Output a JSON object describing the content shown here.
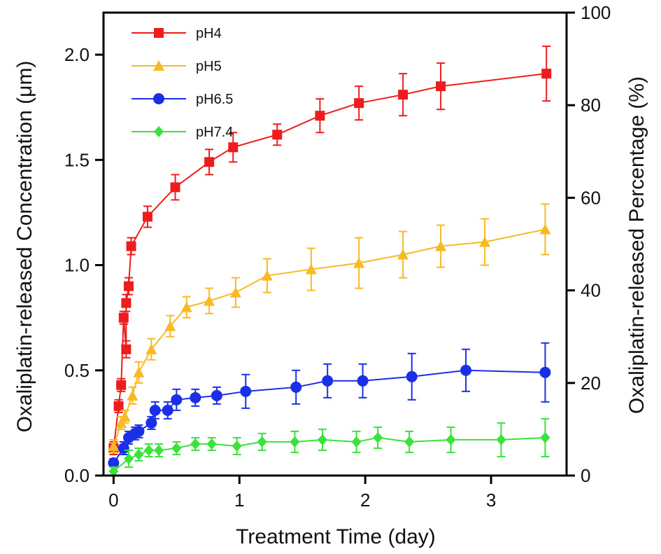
{
  "chart_data": {
    "type": "line",
    "xlabel": "Treatment Time (day)",
    "ylabel": "Oxaliplatin-released Concentration (μm)",
    "y2label": "Oxaliplatin-released Percentage (%)",
    "xlim": [
      -0.08,
      3.6
    ],
    "ylim": [
      0,
      2.2
    ],
    "y2lim": [
      0,
      100
    ],
    "xticks": [
      0,
      1,
      2,
      3
    ],
    "yticks": [
      0.0,
      0.5,
      1.0,
      1.5,
      2.0
    ],
    "y2ticks": [
      0,
      20,
      40,
      60,
      80,
      100
    ],
    "xtick_labels": [
      "0",
      "1",
      "2",
      "3"
    ],
    "ytick_labels": [
      "0.0",
      "0.5",
      "1.0",
      "1.5",
      "2.0"
    ],
    "y2tick_labels": [
      "0",
      "20",
      "40",
      "60",
      "80",
      "100"
    ],
    "legend_position": "top-left",
    "series": [
      {
        "name": "pH4",
        "color": "#ee1c1c",
        "marker": "square",
        "x": [
          0.0,
          0.04,
          0.06,
          0.08,
          0.1,
          0.1,
          0.12,
          0.14,
          0.27,
          0.49,
          0.76,
          0.95,
          1.3,
          1.64,
          1.95,
          2.3,
          2.6,
          3.44
        ],
        "y": [
          0.13,
          0.33,
          0.43,
          0.75,
          0.6,
          0.82,
          0.9,
          1.09,
          1.23,
          1.37,
          1.49,
          1.56,
          1.62,
          1.71,
          1.77,
          1.81,
          1.85,
          1.91
        ],
        "err": [
          0.03,
          0.03,
          0.03,
          0.03,
          0.04,
          0.04,
          0.04,
          0.04,
          0.05,
          0.06,
          0.06,
          0.07,
          0.05,
          0.08,
          0.08,
          0.1,
          0.11,
          0.13
        ]
      },
      {
        "name": "pH5",
        "color": "#f7b924",
        "marker": "triangle",
        "x": [
          0.0,
          0.06,
          0.09,
          0.15,
          0.2,
          0.3,
          0.45,
          0.58,
          0.76,
          0.97,
          1.22,
          1.57,
          1.95,
          2.3,
          2.6,
          2.95,
          3.43
        ],
        "y": [
          0.14,
          0.25,
          0.28,
          0.38,
          0.49,
          0.6,
          0.71,
          0.8,
          0.83,
          0.87,
          0.95,
          0.98,
          1.01,
          1.05,
          1.09,
          1.11,
          1.17
        ],
        "err": [
          0.03,
          0.03,
          0.03,
          0.04,
          0.05,
          0.05,
          0.05,
          0.05,
          0.06,
          0.07,
          0.08,
          0.1,
          0.12,
          0.11,
          0.1,
          0.11,
          0.12
        ]
      },
      {
        "name": "pH6.5",
        "color": "#1a2fe6",
        "marker": "circle",
        "x": [
          0.0,
          0.08,
          0.12,
          0.17,
          0.2,
          0.3,
          0.33,
          0.43,
          0.5,
          0.65,
          0.82,
          1.05,
          1.45,
          1.7,
          1.98,
          2.37,
          2.8,
          3.43
        ],
        "y": [
          0.06,
          0.13,
          0.18,
          0.2,
          0.21,
          0.25,
          0.31,
          0.31,
          0.36,
          0.37,
          0.38,
          0.4,
          0.42,
          0.45,
          0.45,
          0.47,
          0.5,
          0.49
        ],
        "err": [
          0.02,
          0.03,
          0.03,
          0.03,
          0.03,
          0.03,
          0.04,
          0.04,
          0.05,
          0.04,
          0.04,
          0.08,
          0.08,
          0.08,
          0.08,
          0.11,
          0.1,
          0.14
        ]
      },
      {
        "name": "pH7.4",
        "color": "#3ce23c",
        "marker": "diamond",
        "x": [
          0.0,
          0.12,
          0.2,
          0.28,
          0.36,
          0.5,
          0.65,
          0.78,
          0.98,
          1.18,
          1.44,
          1.66,
          1.93,
          2.1,
          2.35,
          2.68,
          3.08,
          3.43
        ],
        "y": [
          0.02,
          0.08,
          0.1,
          0.12,
          0.12,
          0.13,
          0.15,
          0.15,
          0.14,
          0.16,
          0.16,
          0.17,
          0.16,
          0.18,
          0.16,
          0.17,
          0.17,
          0.18
        ],
        "err": [
          0.02,
          0.04,
          0.03,
          0.03,
          0.03,
          0.03,
          0.03,
          0.03,
          0.04,
          0.04,
          0.05,
          0.05,
          0.05,
          0.05,
          0.05,
          0.06,
          0.08,
          0.09
        ]
      }
    ]
  }
}
